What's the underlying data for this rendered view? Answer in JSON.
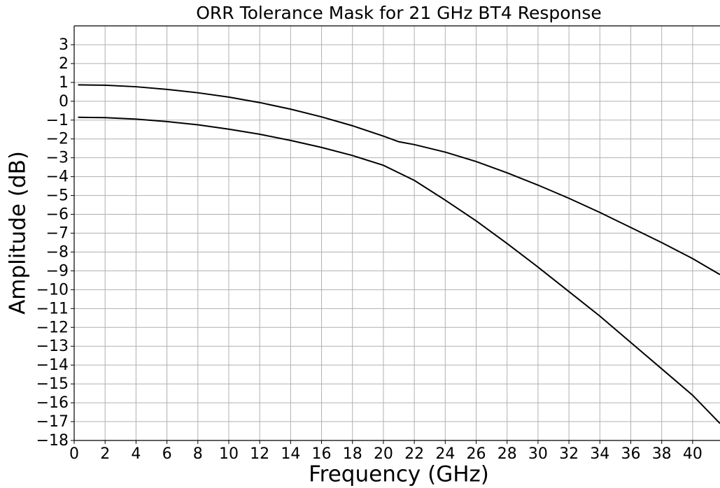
{
  "chart_data": {
    "type": "line",
    "title": "ORR Tolerance Mask for 21 GHz BT4 Response",
    "x_label": "Frequency (GHz)",
    "y_label": "Amplitude (dB)",
    "x": [
      0.25,
      2,
      4,
      6,
      8,
      10,
      12,
      14,
      16,
      18,
      20,
      21,
      22,
      24,
      26,
      28,
      30,
      32,
      34,
      36,
      38,
      40,
      41.77
    ],
    "series": [
      {
        "color": "#000000",
        "values": [
          0.87,
          0.85,
          0.77,
          0.63,
          0.45,
          0.22,
          -0.07,
          -0.42,
          -0.83,
          -1.3,
          -1.85,
          -2.15,
          -2.3,
          -2.7,
          -3.2,
          -3.8,
          -4.45,
          -5.15,
          -5.9,
          -6.7,
          -7.5,
          -8.35,
          -9.2
        ]
      },
      {
        "color": "#000000",
        "values": [
          -0.85,
          -0.87,
          -0.95,
          -1.08,
          -1.25,
          -1.48,
          -1.75,
          -2.08,
          -2.45,
          -2.88,
          -3.4,
          -3.8,
          -4.2,
          -5.25,
          -6.35,
          -7.55,
          -8.8,
          -10.1,
          -11.4,
          -12.8,
          -14.2,
          -15.6,
          -17.1
        ]
      }
    ],
    "xlim": [
      0,
      41.77
    ],
    "ylim": [
      -18,
      4
    ],
    "xticks": [
      0,
      2,
      4,
      6,
      8,
      10,
      12,
      14,
      16,
      18,
      20,
      22,
      24,
      26,
      28,
      30,
      32,
      34,
      36,
      38,
      40
    ],
    "yticks": [
      {
        "value": -18,
        "label": "−18"
      },
      {
        "value": -17,
        "label": "−17"
      },
      {
        "value": -16,
        "label": "−16"
      },
      {
        "value": -15,
        "label": "−15"
      },
      {
        "value": -14,
        "label": "−14"
      },
      {
        "value": -13,
        "label": "−13"
      },
      {
        "value": -12,
        "label": "−12"
      },
      {
        "value": -11,
        "label": "−11"
      },
      {
        "value": -10,
        "label": "−10"
      },
      {
        "value": -9,
        "label": "−9"
      },
      {
        "value": -8,
        "label": "−8"
      },
      {
        "value": -7,
        "label": "−7"
      },
      {
        "value": -6,
        "label": "−6"
      },
      {
        "value": -5,
        "label": "−5"
      },
      {
        "value": -4,
        "label": "−4"
      },
      {
        "value": -3,
        "label": "−3"
      },
      {
        "value": -2,
        "label": "−2"
      },
      {
        "value": -1,
        "label": "−1"
      },
      0,
      1,
      2,
      3
    ],
    "grid": true
  }
}
